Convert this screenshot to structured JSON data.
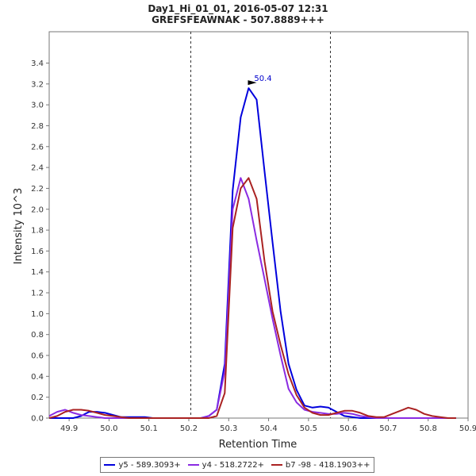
{
  "chart_data": {
    "type": "line",
    "title": "Day1_Hi_01_01, 2016-05-07 12:31",
    "subtitle": "GREFSFEAWNAK - 507.8889+++",
    "xlabel": "Retention Time",
    "ylabel": "Intensity 10^3",
    "xlim": [
      49.85,
      50.9
    ],
    "ylim": [
      0,
      3.7
    ],
    "x_ticks": [
      "49.9",
      "50.0",
      "50.1",
      "50.2",
      "50.3",
      "50.4",
      "50.5",
      "50.6",
      "50.7",
      "50.8",
      "50.9"
    ],
    "y_ticks": [
      "0.0",
      "0.2",
      "0.4",
      "0.6",
      "0.8",
      "1.0",
      "1.2",
      "1.4",
      "1.6",
      "1.8",
      "2.0",
      "2.2",
      "2.4",
      "2.6",
      "2.8",
      "3.0",
      "3.2",
      "3.4"
    ],
    "integration_bounds": [
      50.205,
      50.555
    ],
    "peak_annotation": {
      "label": "50.4",
      "x": 50.378,
      "y": 3.16,
      "color": "#0000cc"
    },
    "series": [
      {
        "name": "y5 - 589.3093+",
        "color": "#0000dd",
        "x": [
          49.85,
          49.87,
          49.89,
          49.91,
          49.93,
          49.95,
          49.97,
          49.99,
          50.01,
          50.03,
          50.05,
          50.07,
          50.09,
          50.11,
          50.13,
          50.15,
          50.17,
          50.19,
          50.21,
          50.23,
          50.25,
          50.27,
          50.29,
          50.31,
          50.33,
          50.35,
          50.37,
          50.39,
          50.41,
          50.43,
          50.45,
          50.47,
          50.49,
          50.51,
          50.53,
          50.55,
          50.57,
          50.59,
          50.61,
          50.63,
          50.65,
          50.67,
          50.69,
          50.71,
          50.73,
          50.75,
          50.77,
          50.79,
          50.81,
          50.83,
          50.85,
          50.87
        ],
        "values": [
          0.0,
          0.0,
          0.0,
          0.0,
          0.02,
          0.06,
          0.06,
          0.05,
          0.03,
          0.01,
          0.01,
          0.01,
          0.01,
          0.0,
          0.0,
          0.0,
          0.0,
          0.0,
          0.0,
          0.0,
          0.02,
          0.08,
          0.52,
          2.18,
          2.88,
          3.16,
          3.05,
          2.36,
          1.68,
          1.02,
          0.52,
          0.27,
          0.12,
          0.1,
          0.11,
          0.1,
          0.06,
          0.02,
          0.01,
          0.0,
          0.0,
          0.0,
          0.0,
          0.0,
          0.0,
          0.0,
          0.0,
          0.0,
          0.0,
          0.0,
          0.0,
          0.0
        ]
      },
      {
        "name": "y4 - 518.2722+",
        "color": "#8a2be2",
        "x": [
          49.85,
          49.87,
          49.89,
          49.91,
          49.93,
          49.95,
          49.97,
          49.99,
          50.01,
          50.03,
          50.05,
          50.07,
          50.09,
          50.11,
          50.13,
          50.15,
          50.17,
          50.19,
          50.21,
          50.23,
          50.25,
          50.27,
          50.29,
          50.31,
          50.33,
          50.35,
          50.37,
          50.39,
          50.41,
          50.43,
          50.45,
          50.47,
          50.49,
          50.51,
          50.53,
          50.55,
          50.57,
          50.59,
          50.61,
          50.63,
          50.65,
          50.67,
          50.69,
          50.71,
          50.73,
          50.75,
          50.77,
          50.79,
          50.81,
          50.83,
          50.85,
          50.87
        ],
        "values": [
          0.02,
          0.06,
          0.08,
          0.05,
          0.03,
          0.02,
          0.01,
          0.0,
          0.0,
          0.0,
          0.0,
          0.0,
          0.0,
          0.0,
          0.0,
          0.0,
          0.0,
          0.0,
          0.0,
          0.0,
          0.02,
          0.08,
          0.45,
          2.0,
          2.3,
          2.1,
          1.7,
          1.33,
          0.95,
          0.6,
          0.28,
          0.15,
          0.08,
          0.06,
          0.05,
          0.04,
          0.04,
          0.05,
          0.04,
          0.02,
          0.01,
          0.0,
          0.0,
          0.0,
          0.0,
          0.0,
          0.0,
          0.0,
          0.0,
          0.0,
          0.0,
          0.0
        ]
      },
      {
        "name": "b7 -98 - 418.1903++",
        "color": "#aa2222",
        "x": [
          49.85,
          49.87,
          49.89,
          49.91,
          49.93,
          49.95,
          49.97,
          49.99,
          50.01,
          50.03,
          50.05,
          50.07,
          50.09,
          50.11,
          50.13,
          50.15,
          50.17,
          50.19,
          50.21,
          50.23,
          50.25,
          50.27,
          50.29,
          50.31,
          50.33,
          50.35,
          50.37,
          50.39,
          50.41,
          50.43,
          50.45,
          50.47,
          50.49,
          50.51,
          50.53,
          50.55,
          50.57,
          50.59,
          50.61,
          50.63,
          50.65,
          50.67,
          50.69,
          50.71,
          50.73,
          50.75,
          50.77,
          50.79,
          50.81,
          50.83,
          50.85,
          50.87
        ],
        "values": [
          0.0,
          0.02,
          0.06,
          0.08,
          0.08,
          0.07,
          0.05,
          0.03,
          0.02,
          0.01,
          0.0,
          0.0,
          0.0,
          0.0,
          0.0,
          0.0,
          0.0,
          0.0,
          0.0,
          0.0,
          0.0,
          0.02,
          0.24,
          1.82,
          2.2,
          2.3,
          2.1,
          1.5,
          1.02,
          0.7,
          0.42,
          0.22,
          0.1,
          0.05,
          0.03,
          0.03,
          0.05,
          0.07,
          0.07,
          0.05,
          0.02,
          0.01,
          0.01,
          0.04,
          0.07,
          0.1,
          0.08,
          0.04,
          0.02,
          0.01,
          0.0,
          0.0
        ]
      }
    ]
  }
}
